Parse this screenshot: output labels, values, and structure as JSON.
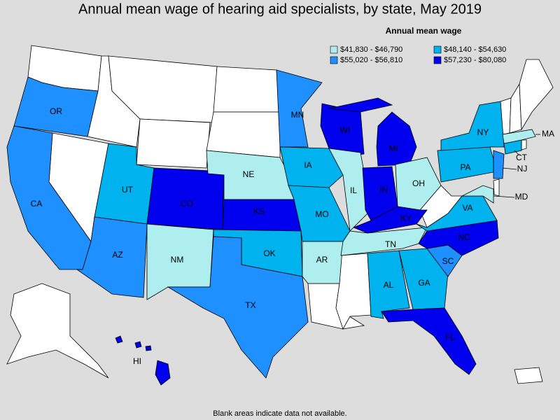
{
  "title": "Annual mean wage of hearing aid specialists, by state, May 2019",
  "legend": {
    "title": "Annual mean wage",
    "items": [
      {
        "label": "$41,830 - $46,790",
        "color": "#aeeeee"
      },
      {
        "label": "$48,140 - $54,630",
        "color": "#00b2ee"
      },
      {
        "label": "$55,020 - $56,810",
        "color": "#1e90ff"
      },
      {
        "label": "$57,230 - $80,080",
        "color": "#0000ee"
      }
    ]
  },
  "states": [
    {
      "label": "OR",
      "color": "#1e90ff"
    },
    {
      "label": "CA",
      "color": "#1e90ff"
    },
    {
      "label": "UT",
      "color": "#00b2ee"
    },
    {
      "label": "AZ",
      "color": "#1e90ff"
    },
    {
      "label": "CO",
      "color": "#0000ee"
    },
    {
      "label": "NM",
      "color": "#aeeeee"
    },
    {
      "label": "NE",
      "color": "#aeeeee"
    },
    {
      "label": "KS",
      "color": "#0000ee"
    },
    {
      "label": "OK",
      "color": "#00b2ee"
    },
    {
      "label": "TX",
      "color": "#1e90ff"
    },
    {
      "label": "MN",
      "color": "#1e90ff"
    },
    {
      "label": "IA",
      "color": "#00b2ee"
    },
    {
      "label": "MO",
      "color": "#00b2ee"
    },
    {
      "label": "AR",
      "color": "#aeeeee"
    },
    {
      "label": "WI",
      "color": "#0000ee"
    },
    {
      "label": "IL",
      "color": "#aeeeee"
    },
    {
      "label": "MI",
      "color": "#0000ee"
    },
    {
      "label": "IN",
      "color": "#0000ee"
    },
    {
      "label": "OH",
      "color": "#aeeeee"
    },
    {
      "label": "KY",
      "color": "#0000ee"
    },
    {
      "label": "TN",
      "color": "#aeeeee"
    },
    {
      "label": "AL",
      "color": "#00b2ee"
    },
    {
      "label": "GA",
      "color": "#00b2ee"
    },
    {
      "label": "FL",
      "color": "#0000ee"
    },
    {
      "label": "SC",
      "color": "#1e90ff"
    },
    {
      "label": "NC",
      "color": "#0000ee"
    },
    {
      "label": "VA",
      "color": "#00b2ee"
    },
    {
      "label": "PA",
      "color": "#00b2ee"
    },
    {
      "label": "NY",
      "color": "#00b2ee"
    },
    {
      "label": "NJ",
      "color": "#1e90ff"
    },
    {
      "label": "MD",
      "color": "#aeeeee"
    },
    {
      "label": "CT",
      "color": "#00b2ee"
    },
    {
      "label": "MA",
      "color": "#aeeeee"
    },
    {
      "label": "HI",
      "color": "#0000ee"
    }
  ],
  "note": "Blank areas indicate data not available."
}
